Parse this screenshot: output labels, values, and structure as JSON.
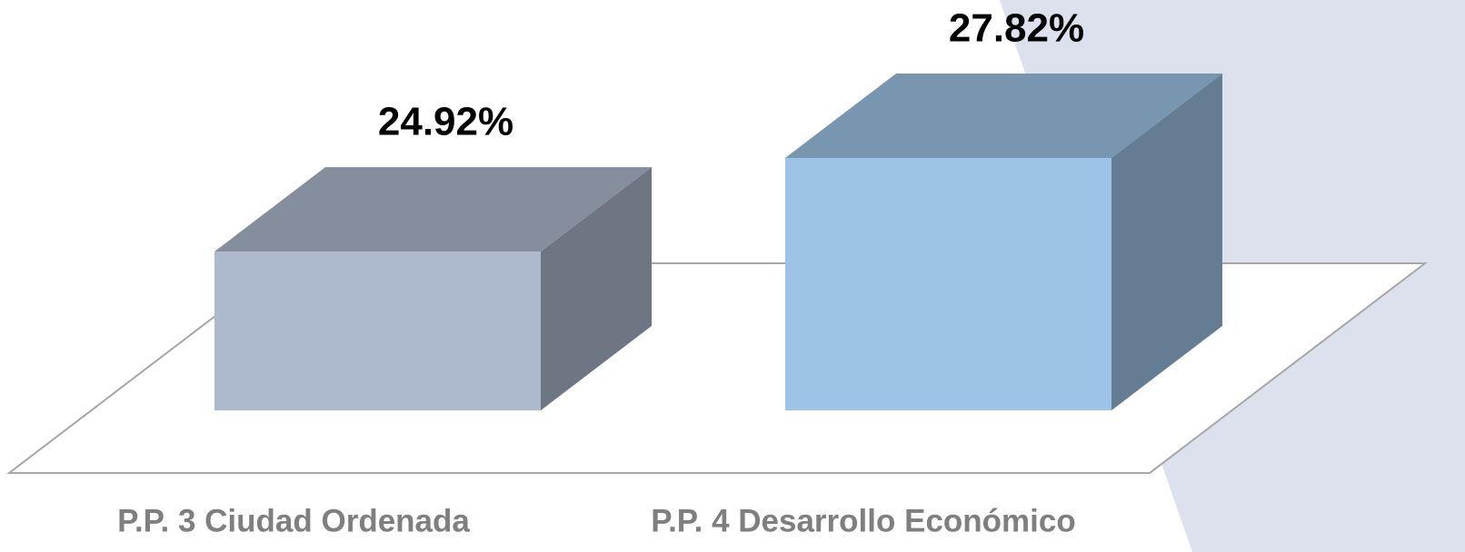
{
  "chart_data": {
    "type": "bar3d",
    "categories": [
      "P.P. 3 Ciudad Ordenada",
      "P.P. 4 Desarrollo Económico"
    ],
    "values": [
      24.92,
      27.82
    ],
    "value_labels": [
      "24.92%",
      "27.82%"
    ],
    "colors": [
      "#adb9cc",
      "#9dc3e6"
    ],
    "ylim": [
      20,
      29
    ]
  }
}
